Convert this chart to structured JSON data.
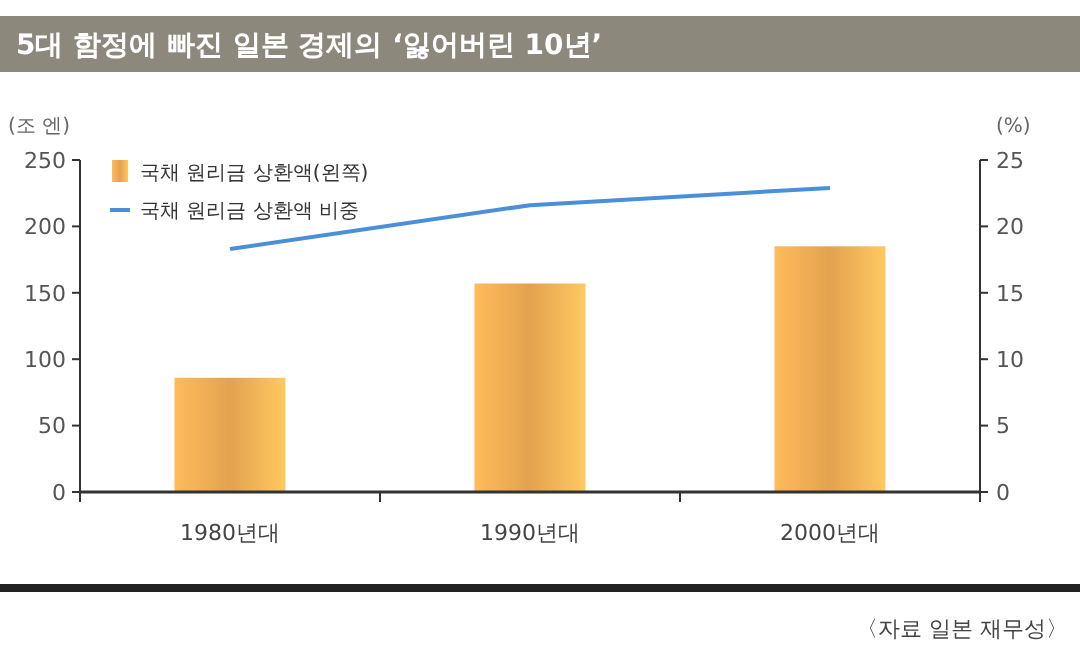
{
  "chart_data": {
    "type": "bar",
    "title": "5대 함정에 빠진 일본 경제의 ‘잃어버린 10년’",
    "ylabel": "(조 엔)",
    "y2label": "(%)",
    "categories": [
      "1980년대",
      "1990년대",
      "2000년대"
    ],
    "series": [
      {
        "name": "국채 원리금 상환액(왼쪽)",
        "color": "#e3a24f",
        "values": [
          86,
          157,
          185
        ]
      },
      {
        "name": "국채 원리금 상환액 비중",
        "type": "line",
        "axis": "y2",
        "color": "#4a90d9",
        "values": [
          18.3,
          21.6,
          22.9
        ]
      }
    ],
    "ylim": [
      0,
      250
    ],
    "yticks": [
      0,
      50,
      100,
      150,
      200,
      250
    ],
    "y2lim": [
      0,
      25
    ],
    "y2ticks": [
      0,
      5,
      10,
      15,
      20,
      25
    ],
    "grid": false,
    "legend": "top left",
    "marker": "none",
    "line_style": "solid",
    "annotations": [
      "〈자료 일본 재무성〉"
    ]
  }
}
